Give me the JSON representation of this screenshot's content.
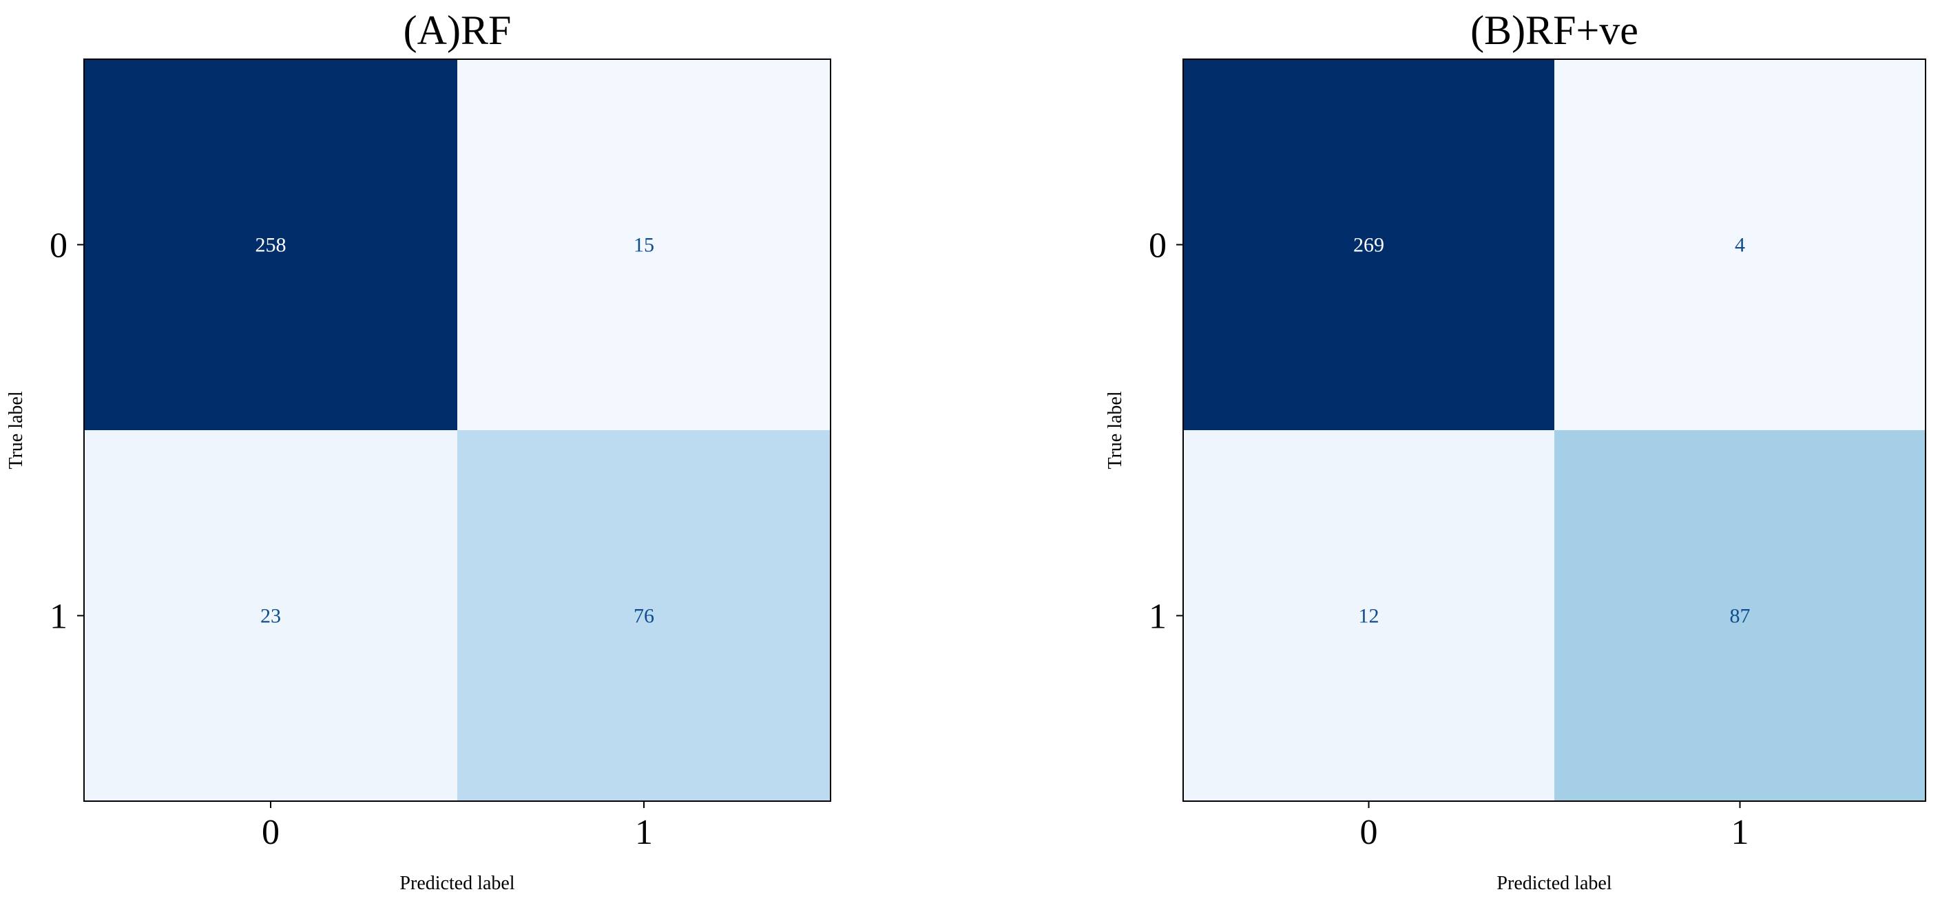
{
  "chart_data": [
    {
      "type": "heatmap",
      "title": "(A)RF",
      "xlabel": "Predicted label",
      "ylabel": "True label",
      "x_categories": [
        "0",
        "1"
      ],
      "y_categories": [
        "0",
        "1"
      ],
      "matrix": [
        [
          258,
          15
        ],
        [
          23,
          76
        ]
      ],
      "colormap": "Blues",
      "cell_colors": [
        [
          "#022d6b",
          "#f3f8fe"
        ],
        [
          "#eef5fc",
          "#bcdaf0"
        ]
      ],
      "text_colors": [
        [
          "#ffffff",
          "#0e4d8e"
        ],
        [
          "#0e4d8e",
          "#0e4d8e"
        ]
      ],
      "grid": false,
      "legend": "none"
    },
    {
      "type": "heatmap",
      "title": "(B)RF+ve",
      "xlabel": "Predicted label",
      "ylabel": "True label",
      "x_categories": [
        "0",
        "1"
      ],
      "y_categories": [
        "0",
        "1"
      ],
      "matrix": [
        [
          269,
          4
        ],
        [
          12,
          87
        ]
      ],
      "colormap": "Blues",
      "cell_colors": [
        [
          "#022d6b",
          "#f3f8fe"
        ],
        [
          "#eef5fc",
          "#a4cfe6"
        ]
      ],
      "text_colors": [
        [
          "#ffffff",
          "#0e4d8e"
        ],
        [
          "#0e4d8e",
          "#0e4d8e"
        ]
      ],
      "grid": false,
      "legend": "none"
    }
  ]
}
